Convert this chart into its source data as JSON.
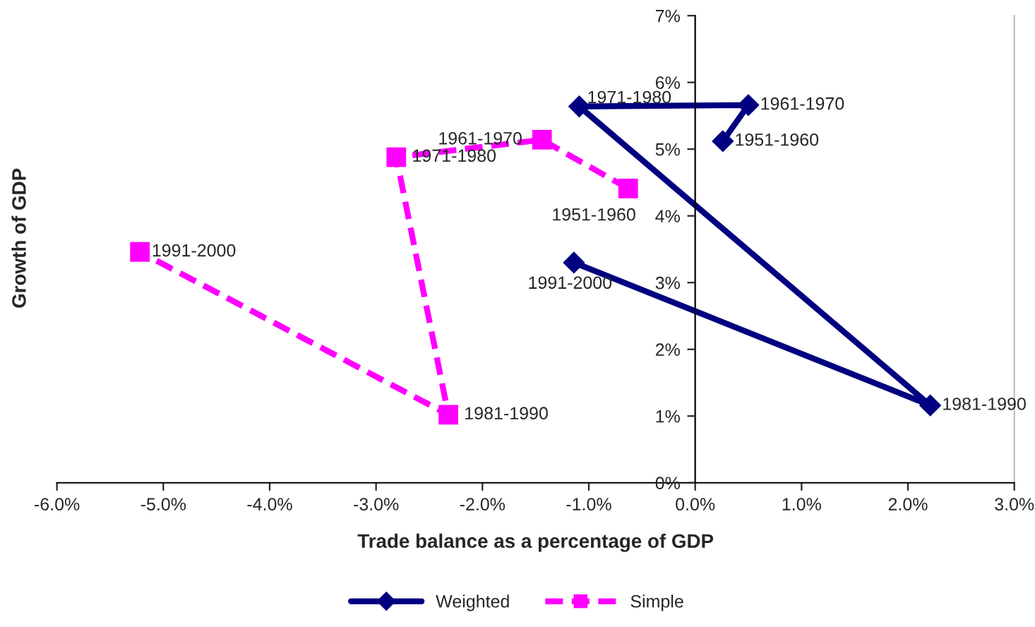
{
  "chart_data": {
    "type": "line",
    "xlabel": "Trade balance as a percentage of GDP",
    "ylabel": "Growth of GDP",
    "xlim": [
      -6,
      3
    ],
    "xticks": [
      {
        "value": -6,
        "label": "-6.0%"
      },
      {
        "value": -5,
        "label": "-5.0%"
      },
      {
        "value": -4,
        "label": "-4.0%"
      },
      {
        "value": -3,
        "label": "-3.0%"
      },
      {
        "value": -2,
        "label": "-2.0%"
      },
      {
        "value": -1,
        "label": "-1.0%"
      },
      {
        "value": 0,
        "label": "0.0%"
      },
      {
        "value": 1,
        "label": "1.0%"
      },
      {
        "value": 2,
        "label": "2.0%"
      },
      {
        "value": 3,
        "label": "3.0%"
      }
    ],
    "ylim": [
      0,
      7
    ],
    "yticks": [
      {
        "value": 0,
        "label": "0%"
      },
      {
        "value": 1,
        "label": "1%"
      },
      {
        "value": 2,
        "label": "2%"
      },
      {
        "value": 3,
        "label": "3%"
      },
      {
        "value": 4,
        "label": "4%"
      },
      {
        "value": 5,
        "label": "5%"
      },
      {
        "value": 6,
        "label": "6%"
      },
      {
        "value": 7,
        "label": "7%"
      }
    ],
    "grid": false,
    "legend": "bottom",
    "series": [
      {
        "name": "Weighted",
        "color": "#000080",
        "marker": "diamond",
        "line_style": "solid",
        "x": [
          0.26,
          0.5,
          -1.09,
          2.21,
          -1.14
        ],
        "values": [
          5.12,
          5.66,
          5.64,
          1.16,
          3.3
        ],
        "value_labels": [
          "1951-1960",
          "1961-1970",
          "1971-1980",
          "1981-1990",
          "1991-2000"
        ]
      },
      {
        "name": "Simple",
        "color": "#ff00ff",
        "marker": "square",
        "line_style": "dashed",
        "x": [
          -0.63,
          -1.44,
          -2.81,
          -2.32,
          -5.22
        ],
        "values": [
          4.41,
          5.14,
          4.88,
          1.02,
          3.46
        ],
        "value_labels": [
          "1951-1960",
          "1961-1970",
          "1971-1980",
          "1981-1990",
          "1991-2000"
        ]
      }
    ]
  }
}
